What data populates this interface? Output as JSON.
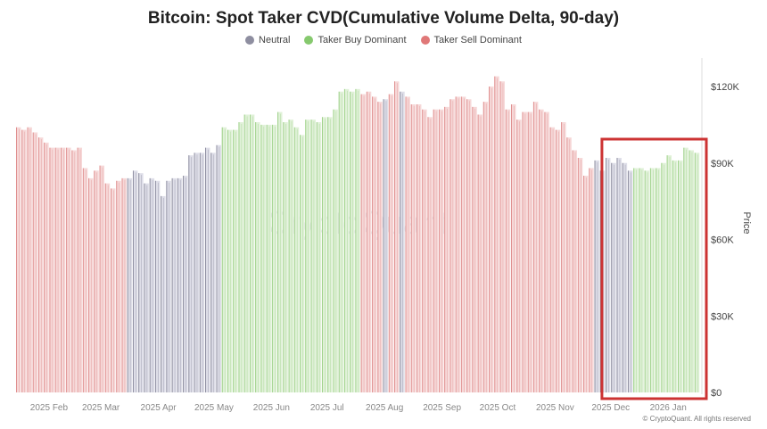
{
  "chart_data": {
    "type": "bar",
    "title": "Bitcoin: Spot Taker CVD(Cumulative Volume Delta, 90-day)",
    "ylabel": "Price",
    "ylim": [
      0,
      130000
    ],
    "y_ticks": [
      "$0",
      "$30K",
      "$60K",
      "$90K",
      "$120K"
    ],
    "y_tick_values": [
      0,
      30000,
      60000,
      90000,
      120000
    ],
    "x_tick_labels": [
      "2025 Feb",
      "2025 Mar",
      "2025 Apr",
      "2025 May",
      "2025 Jun",
      "2025 Jul",
      "2025 Aug",
      "2025 Sep",
      "2025 Oct",
      "2025 Nov",
      "2025 Dec",
      "2026 Jan"
    ],
    "x_tick_dates": [
      "2025-02-01",
      "2025-03-01",
      "2025-04-01",
      "2025-05-01",
      "2025-06-01",
      "2025-07-01",
      "2025-08-01",
      "2025-09-01",
      "2025-10-01",
      "2025-11-01",
      "2025-12-01",
      "2026-01-01"
    ],
    "x_range": [
      "2025-01-20",
      "2026-01-24"
    ],
    "x_start": "2025-01-20",
    "x_step_days": 3,
    "legend": [
      {
        "name": "Neutral",
        "color": "#8e8ea0"
      },
      {
        "name": "Taker Buy Dominant",
        "color": "#86c96e"
      },
      {
        "name": "Taker Sell Dominant",
        "color": "#e07878"
      }
    ],
    "legend_position": "top",
    "price_k": [
      104,
      103,
      104,
      102,
      100,
      98,
      96,
      96,
      96,
      96,
      95,
      96,
      88,
      84,
      87,
      89,
      82,
      80,
      83,
      84,
      84,
      87,
      86,
      82,
      84,
      83,
      77,
      83,
      84,
      84,
      85,
      93,
      94,
      94,
      96,
      94,
      97,
      104,
      103,
      103,
      106,
      109,
      109,
      106,
      105,
      105,
      105,
      110,
      106,
      107,
      104,
      101,
      107,
      107,
      106,
      108,
      108,
      111,
      118,
      119,
      118,
      119,
      117,
      118,
      116,
      114,
      115,
      117,
      122,
      118,
      116,
      113,
      113,
      111,
      108,
      111,
      111,
      112,
      115,
      116,
      116,
      115,
      112,
      109,
      114,
      120,
      124,
      122,
      111,
      113,
      107,
      110,
      110,
      114,
      111,
      110,
      104,
      103,
      106,
      100,
      95,
      92,
      85,
      88,
      91,
      87,
      92,
      90,
      92,
      90,
      87,
      88,
      88,
      87,
      88,
      88,
      90,
      93,
      91,
      91,
      96,
      95,
      94
    ],
    "regime_segments": [
      {
        "from": "2025-01-20",
        "to": "2025-03-18",
        "regime": "Taker Sell Dominant"
      },
      {
        "from": "2025-03-19",
        "to": "2025-05-10",
        "regime": "Neutral"
      },
      {
        "from": "2025-05-11",
        "to": "2025-07-22",
        "regime": "Taker Buy Dominant"
      },
      {
        "from": "2025-07-23",
        "to": "2025-08-05",
        "regime": "Taker Sell Dominant"
      },
      {
        "from": "2025-08-06",
        "to": "2025-08-08",
        "regime": "Neutral"
      },
      {
        "from": "2025-08-09",
        "to": "2025-08-13",
        "regime": "Taker Sell Dominant"
      },
      {
        "from": "2025-08-14",
        "to": "2025-08-16",
        "regime": "Neutral"
      },
      {
        "from": "2025-08-17",
        "to": "2025-11-27",
        "regime": "Taker Sell Dominant"
      },
      {
        "from": "2025-11-28",
        "to": "2025-12-18",
        "regime": "Neutral"
      },
      {
        "from": "2025-12-19",
        "to": "2026-01-24",
        "regime": "Taker Buy Dominant"
      }
    ],
    "highlight": {
      "from": "2025-12-03",
      "to": "2026-01-24",
      "color": "#cc3333"
    },
    "grid": false,
    "watermark": "CryptoQuant"
  },
  "footer": {
    "copyright": "© CryptoQuant. All rights reserved"
  }
}
